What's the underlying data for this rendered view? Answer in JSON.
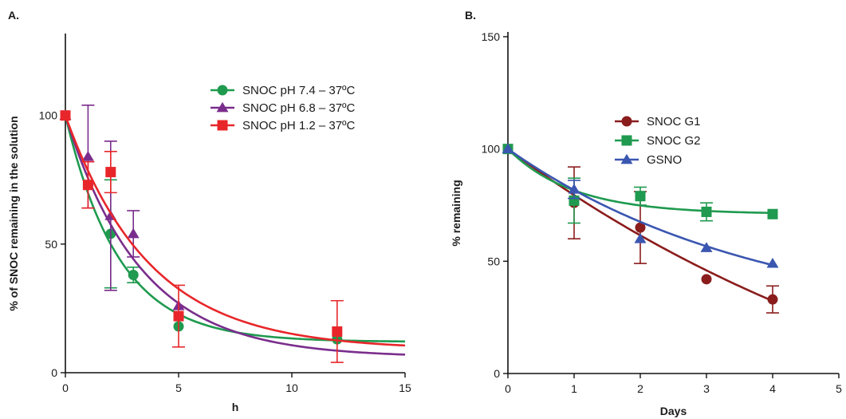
{
  "chart_data": [
    {
      "panel_label": "A.",
      "type": "scatter",
      "xlabel": "h",
      "ylabel": "% of SNOC remaining in the solution",
      "xlim": [
        0,
        15
      ],
      "ylim": [
        0,
        130
      ],
      "xticks": [
        0,
        5,
        10,
        15
      ],
      "yticks": [
        0,
        50,
        100
      ],
      "legend_position": "top-right",
      "series": [
        {
          "name": "SNOC pH 7.4 – 37ºC",
          "color": "#1f9a4f",
          "marker": "circle",
          "x": [
            0,
            1,
            2,
            3,
            5,
            12
          ],
          "y": [
            100,
            73,
            54,
            38,
            18,
            13
          ],
          "err": [
            0,
            0,
            21,
            3,
            0,
            0
          ],
          "fit": {
            "type": "exp_decay",
            "y0": 100,
            "plateau": 12,
            "k": 0.42
          }
        },
        {
          "name": "SNOC pH 6.8 – 37ºC",
          "color": "#7a2d8c",
          "marker": "triangle",
          "x": [
            0,
            1,
            2,
            3,
            5
          ],
          "y": [
            100,
            84,
            61,
            54,
            26
          ],
          "err": [
            0,
            20,
            29,
            9,
            0
          ],
          "fit": {
            "type": "exp_decay",
            "y0": 100,
            "plateau": 6,
            "k": 0.3
          }
        },
        {
          "name": "SNOC pH 1.2 – 37ºC",
          "color": "#e8262a",
          "marker": "square",
          "x": [
            0,
            1,
            2,
            5,
            12
          ],
          "y": [
            100,
            73,
            78,
            22,
            16
          ],
          "err": [
            0,
            9,
            8,
            12,
            12
          ],
          "fit": {
            "type": "exp_decay",
            "y0": 100,
            "plateau": 9,
            "k": 0.27
          }
        }
      ]
    },
    {
      "panel_label": "B.",
      "type": "scatter",
      "xlabel": "Days",
      "ylabel": "% remaining",
      "xlim": [
        0,
        5
      ],
      "ylim": [
        0,
        150
      ],
      "xticks": [
        0,
        1,
        2,
        3,
        4,
        5
      ],
      "yticks": [
        0,
        50,
        100,
        150
      ],
      "legend_position": "top-center",
      "series": [
        {
          "name": "SNOC G1",
          "color": "#8b1c1c",
          "marker": "circle",
          "x": [
            0,
            1,
            2,
            3,
            4
          ],
          "y": [
            100,
            76,
            65,
            42,
            33
          ],
          "err": [
            0,
            16,
            16,
            0,
            6
          ],
          "fit": {
            "type": "exp_decay",
            "y0": 100,
            "plateau": -60,
            "k": 0.1375
          }
        },
        {
          "name": "SNOC G2",
          "color": "#1f9a4f",
          "marker": "square",
          "x": [
            0,
            1,
            2,
            3,
            4
          ],
          "y": [
            100,
            77,
            79,
            72,
            71
          ],
          "err": [
            0,
            10,
            4,
            4,
            0
          ],
          "fit": {
            "type": "exp_decay",
            "y0": 100,
            "plateau": 71,
            "k": 1.01
          }
        },
        {
          "name": "GSNO",
          "color": "#3a56b0",
          "marker": "triangle",
          "x": [
            0,
            1,
            2,
            3,
            4
          ],
          "y": [
            100,
            82,
            60,
            56,
            49
          ],
          "err": [
            0,
            4,
            0,
            0,
            0
          ],
          "fit": {
            "type": "exp_decay",
            "y0": 100,
            "plateau": 20,
            "k": 0.26
          }
        }
      ]
    }
  ]
}
